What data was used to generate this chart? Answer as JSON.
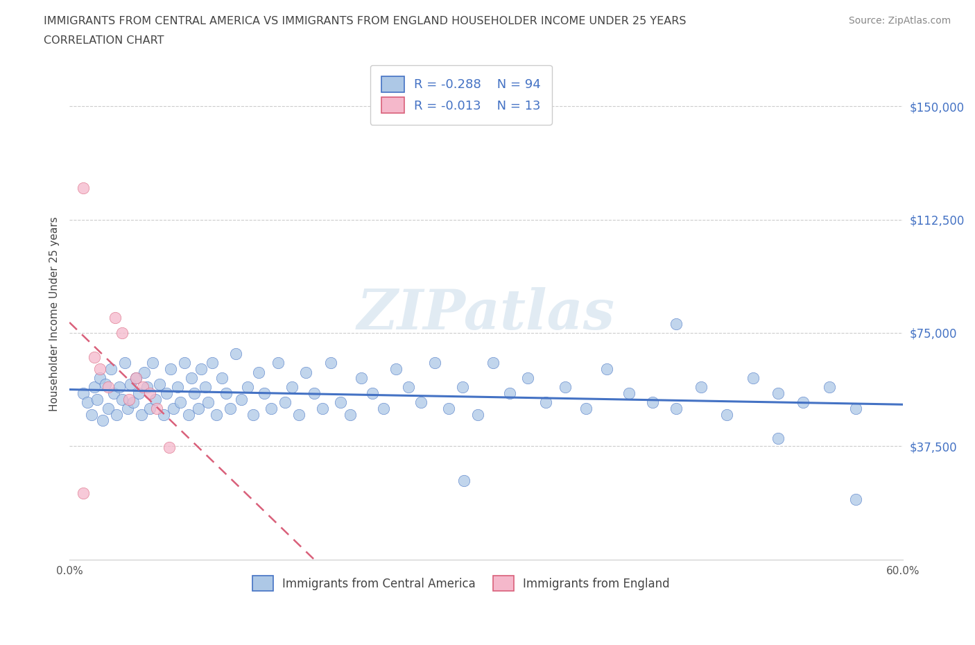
{
  "title_line1": "IMMIGRANTS FROM CENTRAL AMERICA VS IMMIGRANTS FROM ENGLAND HOUSEHOLDER INCOME UNDER 25 YEARS",
  "title_line2": "CORRELATION CHART",
  "source_text": "Source: ZipAtlas.com",
  "ylabel": "Householder Income Under 25 years",
  "xlim": [
    0.0,
    0.6
  ],
  "ylim": [
    0,
    162500
  ],
  "yticks": [
    0,
    37500,
    75000,
    112500,
    150000
  ],
  "ytick_labels": [
    "",
    "$37,500",
    "$75,000",
    "$112,500",
    "$150,000"
  ],
  "xticks": [
    0.0,
    0.1,
    0.2,
    0.3,
    0.4,
    0.5,
    0.6
  ],
  "xtick_labels": [
    "0.0%",
    "",
    "",
    "",
    "",
    "",
    "60.0%"
  ],
  "r_central": -0.288,
  "n_central": 94,
  "r_england": -0.013,
  "n_england": 13,
  "color_central": "#adc8e6",
  "color_england": "#f5b8cb",
  "line_color_central": "#4472c4",
  "line_color_england": "#d9607a",
  "background_color": "#ffffff",
  "watermark": "ZIPatlas",
  "legend_label_central": "Immigrants from Central America",
  "legend_label_england": "Immigrants from England",
  "scatter_central_x": [
    0.01,
    0.013,
    0.016,
    0.018,
    0.02,
    0.022,
    0.024,
    0.026,
    0.028,
    0.03,
    0.032,
    0.034,
    0.036,
    0.038,
    0.04,
    0.042,
    0.044,
    0.046,
    0.048,
    0.05,
    0.052,
    0.054,
    0.056,
    0.058,
    0.06,
    0.062,
    0.065,
    0.068,
    0.07,
    0.073,
    0.075,
    0.078,
    0.08,
    0.083,
    0.086,
    0.088,
    0.09,
    0.093,
    0.095,
    0.098,
    0.1,
    0.103,
    0.106,
    0.11,
    0.113,
    0.116,
    0.12,
    0.124,
    0.128,
    0.132,
    0.136,
    0.14,
    0.145,
    0.15,
    0.155,
    0.16,
    0.165,
    0.17,
    0.176,
    0.182,
    0.188,
    0.195,
    0.202,
    0.21,
    0.218,
    0.226,
    0.235,
    0.244,
    0.253,
    0.263,
    0.273,
    0.283,
    0.294,
    0.305,
    0.317,
    0.33,
    0.343,
    0.357,
    0.372,
    0.387,
    0.403,
    0.42,
    0.437,
    0.455,
    0.473,
    0.492,
    0.51,
    0.528,
    0.547,
    0.566,
    0.284,
    0.437,
    0.51,
    0.566
  ],
  "scatter_central_y": [
    55000,
    52000,
    48000,
    57000,
    53000,
    60000,
    46000,
    58000,
    50000,
    63000,
    55000,
    48000,
    57000,
    53000,
    65000,
    50000,
    58000,
    52000,
    60000,
    55000,
    48000,
    62000,
    57000,
    50000,
    65000,
    53000,
    58000,
    48000,
    55000,
    63000,
    50000,
    57000,
    52000,
    65000,
    48000,
    60000,
    55000,
    50000,
    63000,
    57000,
    52000,
    65000,
    48000,
    60000,
    55000,
    50000,
    68000,
    53000,
    57000,
    48000,
    62000,
    55000,
    50000,
    65000,
    52000,
    57000,
    48000,
    62000,
    55000,
    50000,
    65000,
    52000,
    48000,
    60000,
    55000,
    50000,
    63000,
    57000,
    52000,
    65000,
    50000,
    57000,
    48000,
    65000,
    55000,
    60000,
    52000,
    57000,
    50000,
    63000,
    55000,
    52000,
    50000,
    57000,
    48000,
    60000,
    55000,
    52000,
    57000,
    50000,
    26000,
    78000,
    40000,
    20000
  ],
  "scatter_england_x": [
    0.01,
    0.018,
    0.022,
    0.028,
    0.033,
    0.038,
    0.043,
    0.048,
    0.053,
    0.058,
    0.063,
    0.072,
    0.01
  ],
  "scatter_england_y": [
    123000,
    67000,
    63000,
    57000,
    80000,
    75000,
    53000,
    60000,
    57000,
    55000,
    50000,
    37000,
    22000
  ]
}
